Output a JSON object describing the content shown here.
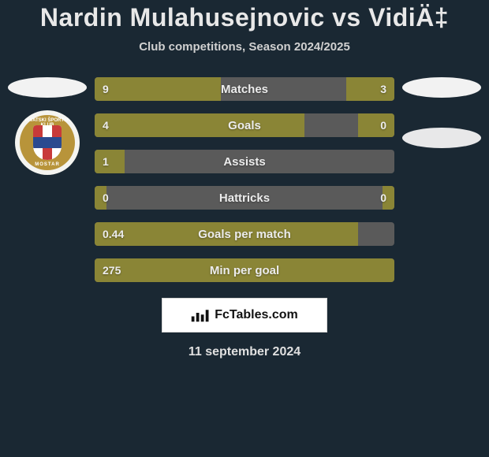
{
  "title": "Nardin Mulahusejnovic vs VidiÄ‡",
  "subtitle": "Club competitions, Season 2024/2025",
  "footer_brand": "FcTables.com",
  "date": "11 september 2024",
  "crest": {
    "top_text": "HRVATSKI ŠPORTSKI KLUB",
    "bottom_text": "MOSTAR",
    "ring_color": "#b8943a"
  },
  "colors": {
    "background": "#1a2833",
    "bar_bg": "#5a5a5a",
    "bar_fill": "#8a8536",
    "text": "#ececec"
  },
  "rows": [
    {
      "label": "Matches",
      "left": "9",
      "right": "3",
      "left_pct": 42,
      "right_pct": 16
    },
    {
      "label": "Goals",
      "left": "4",
      "right": "0",
      "left_pct": 70,
      "right_pct": 12
    },
    {
      "label": "Assists",
      "left": "1",
      "right": "",
      "left_pct": 10,
      "right_pct": 0
    },
    {
      "label": "Hattricks",
      "left": "0",
      "right": "0",
      "left_pct": 4,
      "right_pct": 4
    },
    {
      "label": "Goals per match",
      "left": "0.44",
      "right": "",
      "left_pct": 88,
      "right_pct": 0
    },
    {
      "label": "Min per goal",
      "left": "275",
      "right": "",
      "left_pct": 100,
      "right_pct": 0
    }
  ]
}
